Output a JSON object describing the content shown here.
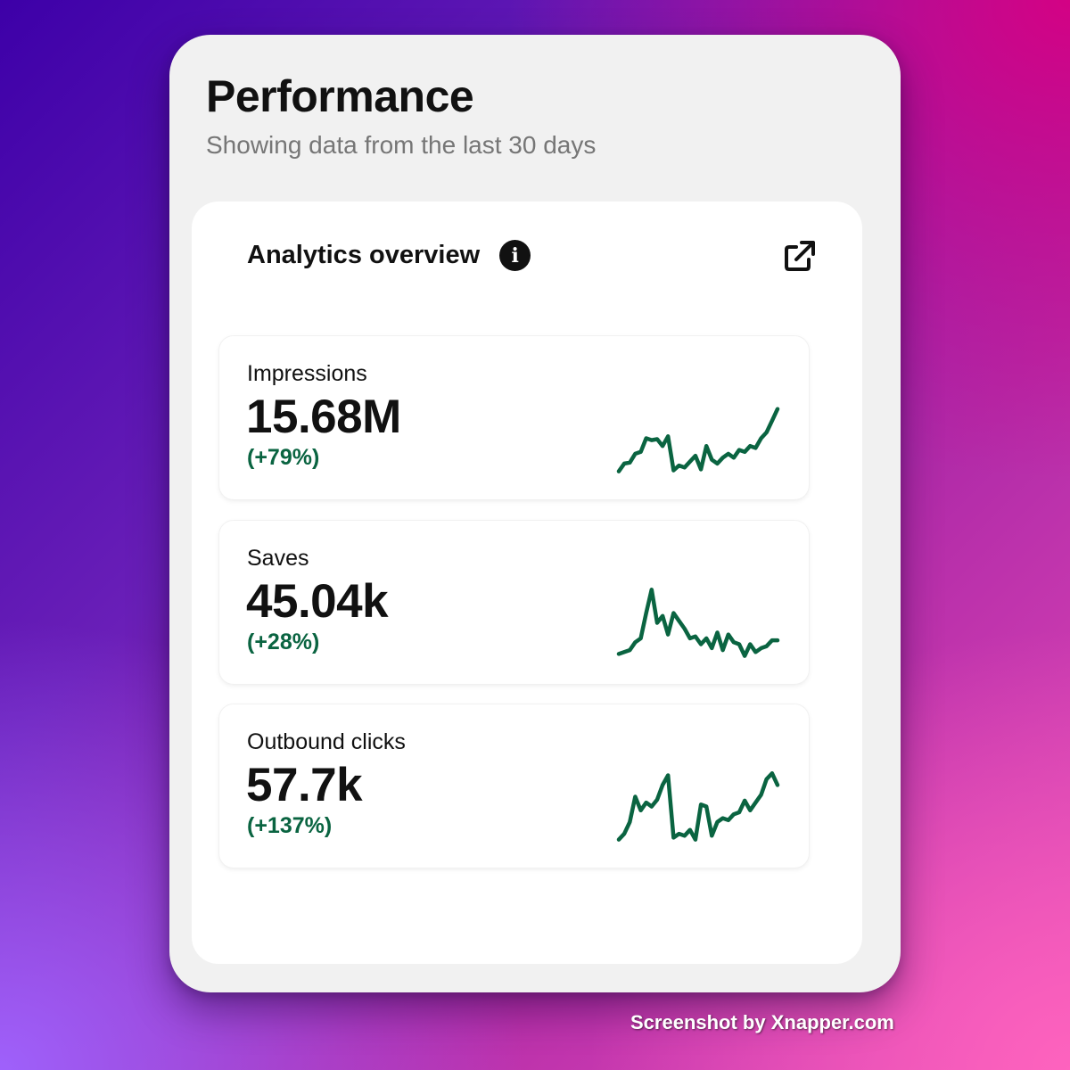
{
  "header": {
    "title": "Performance",
    "subtitle": "Showing data from the last 30 days"
  },
  "panel": {
    "title": "Analytics overview",
    "info_icon": "info-icon",
    "open_icon": "external-link-icon"
  },
  "metrics": [
    {
      "label": "Impressions",
      "value": "15.68M",
      "change": "(+79%)",
      "trend": [
        4,
        12,
        13,
        22,
        24,
        38,
        36,
        37,
        30,
        40,
        5,
        10,
        8,
        14,
        20,
        6,
        30,
        16,
        12,
        18,
        22,
        18,
        26,
        24,
        30,
        28,
        38,
        44,
        56,
        68
      ]
    },
    {
      "label": "Saves",
      "value": "45.04k",
      "change": "(+28%)",
      "trend": [
        6,
        8,
        10,
        18,
        22,
        48,
        72,
        38,
        45,
        26,
        48,
        40,
        32,
        22,
        24,
        16,
        22,
        12,
        28,
        10,
        26,
        18,
        16,
        4,
        16,
        8,
        12,
        14,
        20,
        20
      ]
    },
    {
      "label": "Outbound clicks",
      "value": "57.7k",
      "change": "(+137%)",
      "trend": [
        4,
        10,
        22,
        48,
        34,
        42,
        38,
        45,
        60,
        70,
        6,
        10,
        8,
        14,
        4,
        40,
        38,
        8,
        22,
        26,
        24,
        30,
        32,
        44,
        34,
        42,
        50,
        66,
        72,
        60
      ]
    }
  ],
  "colors": {
    "accent_green": "#0a6441",
    "card_bg": "#f1f1f1",
    "panel_bg": "#ffffff"
  },
  "watermark": "Screenshot by Xnapper.com"
}
